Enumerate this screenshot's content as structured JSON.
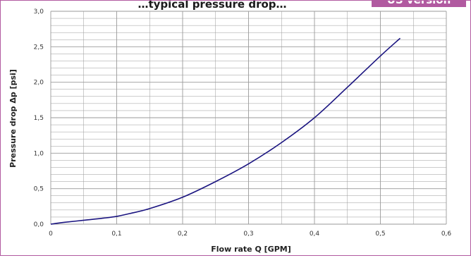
{
  "chart_data": {
    "type": "line",
    "title": "…typical pressure drop…",
    "badge": "US version",
    "xlabel": "Flow rate Q [GPM]",
    "ylabel": "Pressure drop Δp [psi]",
    "xlim": [
      0,
      0.6
    ],
    "ylim": [
      0,
      3.0
    ],
    "x_ticks": [
      "0",
      "0,1",
      "0,2",
      "0,3",
      "0,4",
      "0,5",
      "0,6"
    ],
    "y_ticks": [
      "0,0",
      "0,5",
      "1,0",
      "1,5",
      "2,0",
      "2,5",
      "3,0"
    ],
    "grid": true,
    "series": [
      {
        "x": [
          0,
          0.02,
          0.05,
          0.08,
          0.1,
          0.12,
          0.15,
          0.2,
          0.25,
          0.3,
          0.35,
          0.4,
          0.45,
          0.5,
          0.53
        ],
        "y": [
          0,
          0.025,
          0.055,
          0.085,
          0.11,
          0.15,
          0.22,
          0.38,
          0.6,
          0.85,
          1.15,
          1.5,
          1.93,
          2.37,
          2.62
        ],
        "color": "#1a1480"
      }
    ]
  },
  "colors": {
    "frame": "#b15aa0",
    "badge": "#b15aa0",
    "grid": "#9a9a9a",
    "curve": "#1a1480"
  }
}
